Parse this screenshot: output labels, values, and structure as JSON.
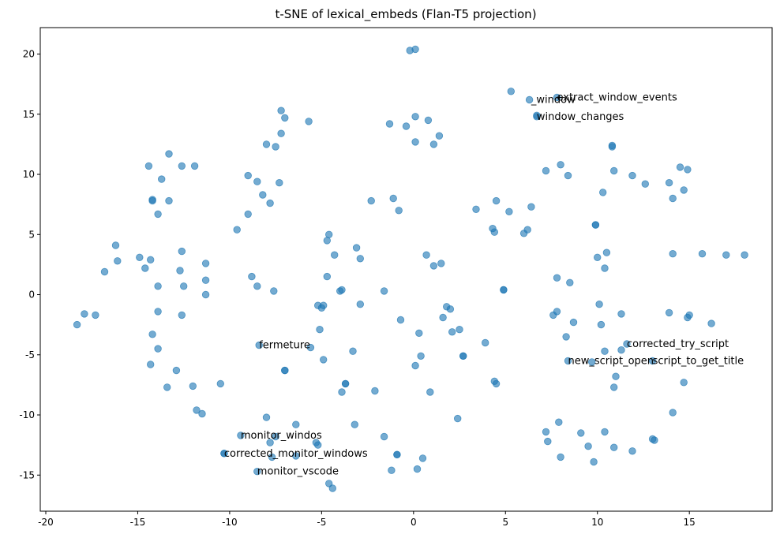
{
  "chart_data": {
    "type": "scatter",
    "title": "t-SNE of lexical_embeds (Flan-T5 projection)",
    "xlabel": "",
    "ylabel": "",
    "xlim": [
      -20.3,
      19.5
    ],
    "ylim": [
      -18,
      22.2
    ],
    "x_ticks": [
      -20,
      -15,
      -10,
      -5,
      0,
      5,
      10,
      15
    ],
    "y_ticks": [
      -15,
      -10,
      -5,
      0,
      5,
      10,
      15,
      20
    ],
    "grid": false,
    "color": "#1f77b4",
    "points": [
      [
        -0.2,
        20.3
      ],
      [
        0.1,
        20.4
      ],
      [
        5.3,
        16.9
      ],
      [
        6.3,
        16.2
      ],
      [
        7.8,
        16.4
      ],
      [
        6.7,
        14.9
      ],
      [
        6.7,
        14.8
      ],
      [
        -7.2,
        15.3
      ],
      [
        -7.0,
        14.7
      ],
      [
        -5.7,
        14.4
      ],
      [
        -7.2,
        13.4
      ],
      [
        -8.0,
        12.5
      ],
      [
        -7.5,
        12.3
      ],
      [
        -1.3,
        14.2
      ],
      [
        -0.4,
        14.0
      ],
      [
        0.1,
        14.8
      ],
      [
        0.8,
        14.5
      ],
      [
        1.4,
        13.2
      ],
      [
        0.1,
        12.7
      ],
      [
        1.1,
        12.5
      ],
      [
        -13.3,
        11.7
      ],
      [
        -12.6,
        10.7
      ],
      [
        -14.4,
        10.7
      ],
      [
        -11.9,
        10.7
      ],
      [
        -13.7,
        9.6
      ],
      [
        -14.2,
        7.8
      ],
      [
        -14.2,
        7.9
      ],
      [
        -13.3,
        7.8
      ],
      [
        -13.9,
        6.7
      ],
      [
        -9.0,
        9.9
      ],
      [
        -8.5,
        9.4
      ],
      [
        -7.3,
        9.3
      ],
      [
        -8.2,
        8.3
      ],
      [
        -7.8,
        7.6
      ],
      [
        -9.0,
        6.7
      ],
      [
        -9.6,
        5.4
      ],
      [
        -2.3,
        7.8
      ],
      [
        -1.1,
        8.0
      ],
      [
        -0.8,
        7.0
      ],
      [
        3.4,
        7.1
      ],
      [
        4.5,
        7.8
      ],
      [
        5.2,
        6.9
      ],
      [
        6.4,
        7.3
      ],
      [
        4.3,
        5.5
      ],
      [
        4.4,
        5.2
      ],
      [
        6.2,
        5.4
      ],
      [
        6.0,
        5.1
      ],
      [
        7.2,
        10.3
      ],
      [
        8.0,
        10.8
      ],
      [
        8.4,
        9.9
      ],
      [
        10.8,
        12.3
      ],
      [
        10.8,
        12.4
      ],
      [
        10.9,
        10.3
      ],
      [
        10.3,
        8.5
      ],
      [
        11.9,
        9.9
      ],
      [
        12.6,
        9.2
      ],
      [
        13.9,
        9.3
      ],
      [
        14.5,
        10.6
      ],
      [
        14.9,
        10.4
      ],
      [
        14.7,
        8.7
      ],
      [
        14.1,
        8.0
      ],
      [
        9.9,
        5.8
      ],
      [
        9.9,
        5.8
      ],
      [
        10.5,
        3.5
      ],
      [
        10.0,
        3.1
      ],
      [
        10.4,
        2.2
      ],
      [
        14.1,
        3.4
      ],
      [
        15.7,
        3.4
      ],
      [
        17.0,
        3.3
      ],
      [
        18.0,
        3.3
      ],
      [
        -16.2,
        4.1
      ],
      [
        -16.1,
        2.8
      ],
      [
        -16.8,
        1.9
      ],
      [
        -14.9,
        3.1
      ],
      [
        -14.3,
        2.9
      ],
      [
        -14.6,
        2.2
      ],
      [
        -12.6,
        3.6
      ],
      [
        -12.7,
        2.0
      ],
      [
        -11.3,
        2.6
      ],
      [
        -11.3,
        1.2
      ],
      [
        -13.9,
        0.7
      ],
      [
        -12.5,
        0.7
      ],
      [
        -11.3,
        0.0
      ],
      [
        -13.9,
        -1.4
      ],
      [
        -12.6,
        -1.7
      ],
      [
        -4.7,
        4.5
      ],
      [
        -4.6,
        5.0
      ],
      [
        -4.3,
        3.3
      ],
      [
        -3.1,
        3.9
      ],
      [
        -2.9,
        3.0
      ],
      [
        -4.7,
        1.5
      ],
      [
        -4.0,
        0.3
      ],
      [
        -3.9,
        0.4
      ],
      [
        -1.6,
        0.3
      ],
      [
        -2.9,
        -0.8
      ],
      [
        -4.9,
        -0.9
      ],
      [
        -5.2,
        -0.9
      ],
      [
        -5.0,
        -1.1
      ],
      [
        -8.8,
        1.5
      ],
      [
        -8.5,
        0.7
      ],
      [
        -7.6,
        0.3
      ],
      [
        0.7,
        3.3
      ],
      [
        1.1,
        2.4
      ],
      [
        1.5,
        2.6
      ],
      [
        4.9,
        0.4
      ],
      [
        4.9,
        0.4
      ],
      [
        1.8,
        -1.0
      ],
      [
        2.0,
        -1.2
      ],
      [
        -0.7,
        -2.1
      ],
      [
        0.3,
        -3.2
      ],
      [
        1.6,
        -1.9
      ],
      [
        2.1,
        -3.1
      ],
      [
        2.5,
        -2.9
      ],
      [
        2.7,
        -5.1
      ],
      [
        2.7,
        -5.1
      ],
      [
        3.9,
        -4.0
      ],
      [
        -5.1,
        -2.9
      ],
      [
        -5.6,
        -4.4
      ],
      [
        -4.9,
        -5.4
      ],
      [
        -3.3,
        -4.7
      ],
      [
        0.4,
        -5.1
      ],
      [
        0.1,
        -5.9
      ],
      [
        -18.3,
        -2.5
      ],
      [
        -17.9,
        -1.6
      ],
      [
        -17.3,
        -1.7
      ],
      [
        -14.2,
        -3.3
      ],
      [
        -13.9,
        -4.5
      ],
      [
        -14.3,
        -5.8
      ],
      [
        -12.9,
        -6.3
      ],
      [
        -13.4,
        -7.7
      ],
      [
        -12.0,
        -7.6
      ],
      [
        -10.5,
        -7.4
      ],
      [
        -11.8,
        -9.6
      ],
      [
        -11.5,
        -9.9
      ],
      [
        -8.4,
        -4.2
      ],
      [
        -7.0,
        -6.3
      ],
      [
        -7.0,
        -6.3
      ],
      [
        -3.7,
        -7.4
      ],
      [
        -3.7,
        -7.4
      ],
      [
        -3.9,
        -8.1
      ],
      [
        -2.1,
        -8.0
      ],
      [
        0.9,
        -8.1
      ],
      [
        2.4,
        -10.3
      ],
      [
        4.4,
        -7.2
      ],
      [
        4.5,
        -7.4
      ],
      [
        7.8,
        1.4
      ],
      [
        8.5,
        1.0
      ],
      [
        7.6,
        -1.7
      ],
      [
        7.8,
        -1.4
      ],
      [
        8.7,
        -2.3
      ],
      [
        8.3,
        -3.5
      ],
      [
        10.1,
        -0.8
      ],
      [
        10.2,
        -2.5
      ],
      [
        11.3,
        -1.6
      ],
      [
        13.9,
        -1.5
      ],
      [
        15.0,
        -1.7
      ],
      [
        14.9,
        -1.9
      ],
      [
        16.2,
        -2.4
      ],
      [
        11.6,
        -4.1
      ],
      [
        11.3,
        -4.6
      ],
      [
        10.4,
        -4.7
      ],
      [
        9.7,
        -5.6
      ],
      [
        8.4,
        -5.5
      ],
      [
        13.0,
        -5.5
      ],
      [
        11.0,
        -6.8
      ],
      [
        10.9,
        -7.7
      ],
      [
        14.7,
        -7.3
      ],
      [
        -8.0,
        -10.2
      ],
      [
        -6.4,
        -10.8
      ],
      [
        -9.4,
        -11.7
      ],
      [
        -7.5,
        -11.8
      ],
      [
        -7.8,
        -12.3
      ],
      [
        -10.3,
        -13.2
      ],
      [
        -10.3,
        -13.2
      ],
      [
        -7.7,
        -13.5
      ],
      [
        -6.4,
        -13.4
      ],
      [
        -5.3,
        -12.3
      ],
      [
        -5.2,
        -12.5
      ],
      [
        -8.5,
        -14.7
      ],
      [
        -4.6,
        -15.7
      ],
      [
        -4.4,
        -16.1
      ],
      [
        -3.2,
        -10.8
      ],
      [
        -1.6,
        -11.8
      ],
      [
        -0.9,
        -13.3
      ],
      [
        -0.9,
        -13.3
      ],
      [
        -1.2,
        -14.6
      ],
      [
        0.5,
        -13.6
      ],
      [
        0.2,
        -14.5
      ],
      [
        7.2,
        -11.4
      ],
      [
        7.3,
        -12.2
      ],
      [
        7.9,
        -10.6
      ],
      [
        9.1,
        -11.5
      ],
      [
        9.5,
        -12.6
      ],
      [
        10.4,
        -11.4
      ],
      [
        10.9,
        -12.7
      ],
      [
        8.0,
        -13.5
      ],
      [
        9.8,
        -13.9
      ],
      [
        11.9,
        -13.0
      ],
      [
        13.0,
        -12.0
      ],
      [
        13.1,
        -12.1
      ],
      [
        14.1,
        -9.8
      ]
    ],
    "annotations": [
      {
        "text": "_window",
        "x": 6.4,
        "y": 16.2
      },
      {
        "text": "extract_window_events",
        "x": 7.8,
        "y": 16.4
      },
      {
        "text": "window_changes",
        "x": 6.7,
        "y": 14.8
      },
      {
        "text": "fermeture",
        "x": -8.4,
        "y": -4.2
      },
      {
        "text": "corrected_try_script",
        "x": 11.6,
        "y": -4.1
      },
      {
        "text": "new_script_open",
        "x": 8.4,
        "y": -5.5
      },
      {
        "text": "script_to_get_title",
        "x": 13.0,
        "y": -5.5
      },
      {
        "text": "monitor_windos",
        "x": -9.4,
        "y": -11.7
      },
      {
        "text": "corrected_monitor_windows",
        "x": -10.3,
        "y": -13.2
      },
      {
        "text": "monitor_vscode",
        "x": -8.5,
        "y": -14.7
      }
    ]
  }
}
